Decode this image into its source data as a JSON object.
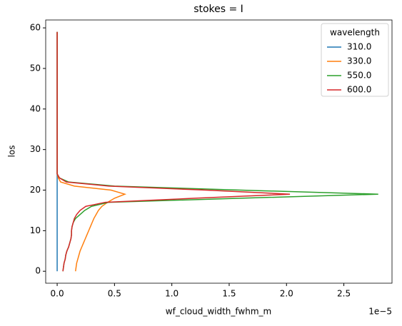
{
  "chart_data": {
    "type": "line",
    "orientation": "horizontal",
    "title": "stokes = I",
    "x_label": "wf_cloud_width_fwhm_m",
    "x_offset_label": "1e−5",
    "y_label": "los",
    "y": [
      0,
      1,
      2,
      3,
      4,
      5,
      6,
      7,
      8,
      9,
      10,
      11,
      12,
      13,
      14,
      15,
      16,
      17,
      18,
      19,
      20,
      21,
      22,
      23,
      24,
      25,
      59
    ],
    "series": [
      {
        "name": "310.0",
        "color": "#1f77b4",
        "values": [
          0,
          0,
          0,
          0,
          0,
          0,
          0,
          0,
          0,
          0,
          0,
          0,
          0,
          0,
          0,
          0,
          0,
          0,
          0,
          0,
          0,
          0,
          0,
          0,
          0,
          0,
          0
        ]
      },
      {
        "name": "330.0",
        "color": "#ff7f0e",
        "values": [
          0.16,
          0.165,
          0.17,
          0.18,
          0.19,
          0.2,
          0.215,
          0.23,
          0.245,
          0.26,
          0.275,
          0.29,
          0.305,
          0.32,
          0.34,
          0.36,
          0.39,
          0.44,
          0.5,
          0.59,
          0.47,
          0.15,
          0.03,
          0.01,
          0,
          0,
          0
        ]
      },
      {
        "name": "550.0",
        "color": "#2ca02c",
        "values": [
          0.05,
          0.055,
          0.06,
          0.07,
          0.075,
          0.085,
          0.1,
          0.11,
          0.12,
          0.125,
          0.125,
          0.13,
          0.14,
          0.16,
          0.2,
          0.24,
          0.3,
          0.45,
          1.6,
          2.8,
          1.6,
          0.5,
          0.1,
          0.02,
          0,
          0,
          0
        ]
      },
      {
        "name": "600.0",
        "color": "#d62728",
        "values": [
          0.05,
          0.055,
          0.06,
          0.07,
          0.075,
          0.085,
          0.1,
          0.11,
          0.12,
          0.125,
          0.125,
          0.13,
          0.14,
          0.15,
          0.17,
          0.2,
          0.25,
          0.42,
          1.2,
          2.03,
          1.3,
          0.45,
          0.08,
          0.02,
          0,
          0,
          0
        ]
      }
    ],
    "xlim": [
      -0.1,
      2.92
    ],
    "ylim": [
      -2.95,
      61.95
    ],
    "xticks": [
      {
        "value": 0,
        "label": "0.0"
      },
      0.5,
      {
        "value": 1,
        "label": "1.0"
      },
      1.5,
      {
        "value": 2,
        "label": "2.0"
      },
      2.5
    ],
    "yticks": [
      0,
      10,
      20,
      30,
      40,
      50,
      60
    ],
    "legend_title": "wavelength",
    "legend": "upper right",
    "grid": false
  }
}
